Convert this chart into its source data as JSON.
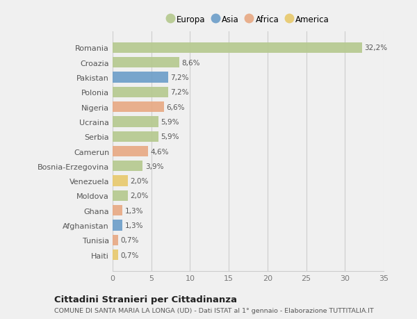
{
  "countries": [
    "Romania",
    "Croazia",
    "Pakistan",
    "Polonia",
    "Nigeria",
    "Ucraina",
    "Serbia",
    "Camerun",
    "Bosnia-Erzegovina",
    "Venezuela",
    "Moldova",
    "Ghana",
    "Afghanistan",
    "Tunisia",
    "Haiti"
  ],
  "values": [
    32.2,
    8.6,
    7.2,
    7.2,
    6.6,
    5.9,
    5.9,
    4.6,
    3.9,
    2.0,
    2.0,
    1.3,
    1.3,
    0.7,
    0.7
  ],
  "labels": [
    "32,2%",
    "8,6%",
    "7,2%",
    "7,2%",
    "6,6%",
    "5,9%",
    "5,9%",
    "4,6%",
    "3,9%",
    "2,0%",
    "2,0%",
    "1,3%",
    "1,3%",
    "0,7%",
    "0,7%"
  ],
  "continents": [
    "Europa",
    "Europa",
    "Asia",
    "Europa",
    "Africa",
    "Europa",
    "Europa",
    "Africa",
    "Europa",
    "America",
    "Europa",
    "Africa",
    "Asia",
    "Africa",
    "America"
  ],
  "colors": {
    "Europa": "#b5c98e",
    "Asia": "#6b9dc8",
    "Africa": "#e8a882",
    "America": "#e8c96b"
  },
  "legend_order": [
    "Europa",
    "Asia",
    "Africa",
    "America"
  ],
  "title": "Cittadini Stranieri per Cittadinanza",
  "subtitle": "COMUNE DI SANTA MARIA LA LONGA (UD) - Dati ISTAT al 1° gennaio - Elaborazione TUTTITALIA.IT",
  "xlim": [
    0,
    35
  ],
  "xticks": [
    0,
    5,
    10,
    15,
    20,
    25,
    30,
    35
  ],
  "bg_color": "#f0f0f0",
  "plot_bg_color": "#f0f0f0"
}
